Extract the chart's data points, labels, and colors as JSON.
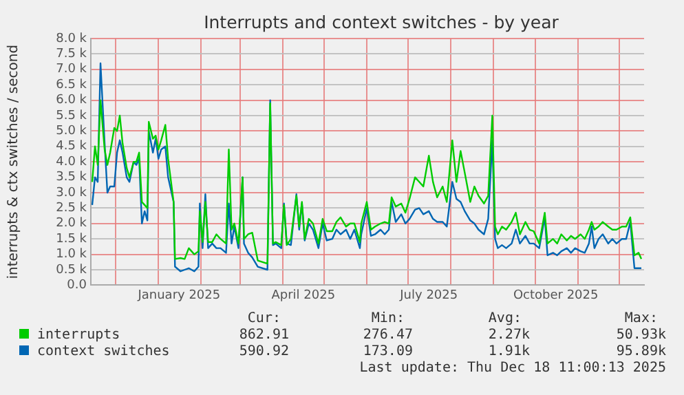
{
  "chart_data": {
    "type": "line",
    "title": "Interrupts and context switches - by year",
    "ylabel": "interrupts & ctx switches / second",
    "x": [
      "2024-11-14",
      "2024-11-16",
      "2024-11-18",
      "2024-11-20",
      "2024-11-23",
      "2024-11-25",
      "2024-11-27",
      "2024-11-30",
      "2024-12-02",
      "2024-12-04",
      "2024-12-06",
      "2024-12-09",
      "2024-12-11",
      "2024-12-14",
      "2024-12-16",
      "2024-12-18",
      "2024-12-20",
      "2024-12-22",
      "2024-12-24",
      "2024-12-25",
      "2024-12-28",
      "2024-12-30",
      "2025-01-01",
      "2025-01-03",
      "2025-01-06",
      "2025-01-08",
      "2025-01-12",
      "2025-01-13",
      "2025-01-17",
      "2025-01-20",
      "2025-01-23",
      "2025-01-27",
      "2025-01-30",
      "2025-01-31",
      "2025-02-02",
      "2025-02-04",
      "2025-02-06",
      "2025-02-09",
      "2025-02-12",
      "2025-02-15",
      "2025-02-19",
      "2025-02-21",
      "2025-02-23",
      "2025-02-25",
      "2025-02-28",
      "2025-03-03",
      "2025-03-04",
      "2025-03-07",
      "2025-03-10",
      "2025-03-14",
      "2025-03-21",
      "2025-03-23",
      "2025-03-25",
      "2025-03-27",
      "2025-03-31",
      "2025-04-02",
      "2025-04-04",
      "2025-04-07",
      "2025-04-11",
      "2025-04-13",
      "2025-04-15",
      "2025-04-17",
      "2025-04-20",
      "2025-04-23",
      "2025-04-27",
      "2025-04-30",
      "2025-05-03",
      "2025-05-07",
      "2025-05-10",
      "2025-05-13",
      "2025-05-17",
      "2025-05-20",
      "2025-05-23",
      "2025-05-27",
      "2025-05-28",
      "2025-06-01",
      "2025-06-04",
      "2025-06-07",
      "2025-06-11",
      "2025-06-14",
      "2025-06-17",
      "2025-06-19",
      "2025-06-22",
      "2025-06-26",
      "2025-06-29",
      "2025-07-02",
      "2025-07-06",
      "2025-07-09",
      "2025-07-12",
      "2025-07-16",
      "2025-07-19",
      "2025-07-22",
      "2025-07-26",
      "2025-07-29",
      "2025-08-02",
      "2025-08-05",
      "2025-08-08",
      "2025-08-11",
      "2025-08-15",
      "2025-08-18",
      "2025-08-21",
      "2025-08-25",
      "2025-08-28",
      "2025-08-31",
      "2025-09-02",
      "2025-09-04",
      "2025-09-07",
      "2025-09-10",
      "2025-09-14",
      "2025-09-17",
      "2025-09-20",
      "2025-09-24",
      "2025-09-27",
      "2025-09-30",
      "2025-10-04",
      "2025-10-08",
      "2025-10-10",
      "2025-10-14",
      "2025-10-17",
      "2025-10-20",
      "2025-10-24",
      "2025-10-27",
      "2025-10-30",
      "2025-11-03",
      "2025-11-06",
      "2025-11-09",
      "2025-11-11",
      "2025-11-13",
      "2025-11-16",
      "2025-11-19",
      "2025-11-23",
      "2025-11-26",
      "2025-11-29",
      "2025-12-03",
      "2025-12-06",
      "2025-12-09",
      "2025-12-12",
      "2025-12-15",
      "2025-12-17"
    ],
    "series": [
      {
        "name": "interrupts",
        "color": "#00cc00",
        "values": [
          3350,
          4500,
          3900,
          6000,
          4400,
          3900,
          4300,
          5100,
          5000,
          5500,
          4600,
          3800,
          3500,
          4000,
          4000,
          4300,
          2700,
          2600,
          2500,
          5300,
          4750,
          4850,
          4400,
          4700,
          5200,
          4100,
          2700,
          850,
          880,
          850,
          1200,
          1000,
          1100,
          2400,
          1400,
          2700,
          1400,
          1400,
          1650,
          1500,
          1350,
          4400,
          1800,
          2000,
          1350,
          3500,
          1500,
          1650,
          1700,
          800,
          700,
          5900,
          1350,
          1400,
          1300,
          2600,
          1300,
          1500,
          2900,
          1900,
          2700,
          1500,
          2150,
          2000,
          1350,
          2150,
          1750,
          1750,
          2050,
          2200,
          1900,
          2000,
          2000,
          1400,
          2000,
          2700,
          1800,
          1900,
          2000,
          2050,
          2000,
          2850,
          2550,
          2650,
          2350,
          2800,
          3500,
          3350,
          3200,
          4200,
          3350,
          2850,
          3200,
          2700,
          4700,
          3350,
          4350,
          3650,
          2700,
          3200,
          2900,
          2650,
          2900,
          5500,
          1900,
          1650,
          1900,
          1800,
          2050,
          2350,
          1650,
          2050,
          1800,
          1750,
          1350,
          2350,
          1350,
          1500,
          1350,
          1650,
          1450,
          1600,
          1500,
          1650,
          1500,
          1800,
          2050,
          1800,
          1900,
          2050,
          1900,
          1800,
          1800,
          1900,
          1900,
          2200,
          970,
          1050,
          850
        ]
      },
      {
        "name": "context switches",
        "color": "#0066b3",
        "values": [
          2600,
          3500,
          3350,
          7200,
          4600,
          3000,
          3200,
          3200,
          4300,
          4700,
          4300,
          3500,
          3350,
          4000,
          3900,
          4100,
          2000,
          2400,
          2100,
          5000,
          4300,
          4750,
          4100,
          4400,
          4500,
          3500,
          2700,
          600,
          450,
          500,
          550,
          450,
          600,
          2650,
          1200,
          2950,
          1200,
          1350,
          1200,
          1200,
          1050,
          2650,
          1350,
          1900,
          1200,
          3500,
          1350,
          1050,
          900,
          600,
          500,
          6000,
          1300,
          1350,
          1200,
          2650,
          1350,
          1300,
          2950,
          1800,
          2650,
          1450,
          2000,
          1800,
          1200,
          2000,
          1450,
          1500,
          1800,
          1650,
          1800,
          1500,
          1800,
          1200,
          1650,
          2500,
          1600,
          1650,
          1800,
          1650,
          1800,
          2700,
          2050,
          2300,
          2000,
          2150,
          2450,
          2500,
          2300,
          2400,
          2150,
          2050,
          2050,
          1900,
          3350,
          2800,
          2700,
          2400,
          2100,
          2000,
          1800,
          1650,
          2150,
          4700,
          1500,
          1200,
          1300,
          1200,
          1350,
          1800,
          1350,
          1600,
          1350,
          1350,
          1200,
          2200,
          970,
          1050,
          970,
          1100,
          1200,
          1050,
          1200,
          1100,
          1050,
          1350,
          1900,
          1200,
          1500,
          1650,
          1350,
          1500,
          1350,
          1500,
          1500,
          2050,
          550,
          550,
          550
        ]
      }
    ],
    "xlim": [
      "2024-11-13",
      "2025-12-19"
    ],
    "xticks": [
      {
        "value": "2024-12-01",
        "label": null
      },
      {
        "value": "2025-01-01",
        "label": null
      },
      {
        "value": "2025-01-16",
        "label": "January 2025"
      },
      {
        "value": "2025-02-01",
        "label": null
      },
      {
        "value": "2025-03-01",
        "label": null
      },
      {
        "value": "2025-04-01",
        "label": null
      },
      {
        "value": "2025-04-16",
        "label": "April 2025"
      },
      {
        "value": "2025-05-01",
        "label": null
      },
      {
        "value": "2025-06-01",
        "label": null
      },
      {
        "value": "2025-07-01",
        "label": null
      },
      {
        "value": "2025-07-16",
        "label": "July 2025"
      },
      {
        "value": "2025-08-01",
        "label": null
      },
      {
        "value": "2025-09-01",
        "label": null
      },
      {
        "value": "2025-10-01",
        "label": null
      },
      {
        "value": "2025-10-16",
        "label": "October 2025"
      },
      {
        "value": "2025-11-01",
        "label": null
      },
      {
        "value": "2025-12-01",
        "label": null
      }
    ],
    "ylim": [
      0,
      8000
    ],
    "yticks": [
      {
        "value": 0,
        "label": "0.0"
      },
      {
        "value": 500,
        "label": "0.5 k"
      },
      {
        "value": 1000,
        "label": "1.0 k"
      },
      {
        "value": 1500,
        "label": "1.5 k"
      },
      {
        "value": 2000,
        "label": "2.0 k"
      },
      {
        "value": 2500,
        "label": "2.5 k"
      },
      {
        "value": 3000,
        "label": "3.0 k"
      },
      {
        "value": 3500,
        "label": "3.5 k"
      },
      {
        "value": 4000,
        "label": "4.0 k"
      },
      {
        "value": 4500,
        "label": "4.5 k"
      },
      {
        "value": 5000,
        "label": "5.0 k"
      },
      {
        "value": 5500,
        "label": "5.5 k"
      },
      {
        "value": 6000,
        "label": "6.0 k"
      },
      {
        "value": 6500,
        "label": "6.5 k"
      },
      {
        "value": 7000,
        "label": "7.0 k"
      },
      {
        "value": 7500,
        "label": "7.5 k"
      },
      {
        "value": 8000,
        "label": "8.0 k"
      }
    ],
    "grid": true,
    "legend": "bottom",
    "marker": "none",
    "line_style": "solid",
    "annotations": [
      "Cur:",
      "Min:",
      "Avg:",
      "Max:",
      "862.91",
      "276.47",
      "2.27k",
      "50.93k",
      "590.92",
      "173.09",
      "1.91k",
      "95.89k",
      "Last update: Thu Dec 18 11:00:13 2025"
    ]
  }
}
